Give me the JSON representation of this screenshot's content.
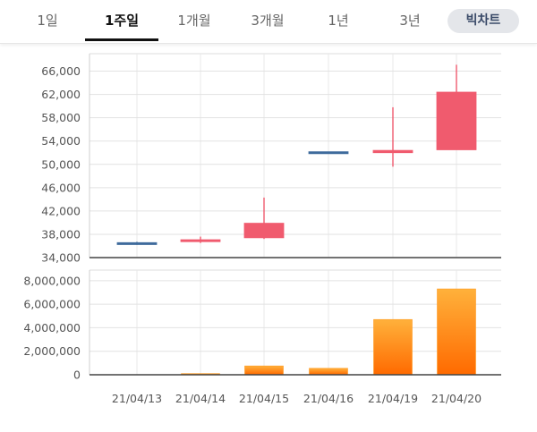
{
  "tabs": [
    {
      "label": "1일"
    },
    {
      "label": "1주일"
    },
    {
      "label": "1개월"
    },
    {
      "label": "3개월"
    },
    {
      "label": "1년"
    },
    {
      "label": "3년"
    }
  ],
  "active_tab": 1,
  "bitchart_label": "빅차트",
  "colors": {
    "up": "#f05b6e",
    "down": "#3f6b9c",
    "volume_top": "#ffb13b",
    "volume_bottom": "#ff6a00"
  },
  "chart_data": [
    {
      "type": "candlestick",
      "title": "",
      "categories": [
        "21/04/13",
        "21/04/14",
        "21/04/15",
        "21/04/16",
        "21/04/19",
        "21/04/20"
      ],
      "open": [
        36400,
        36900,
        37400,
        52000,
        52000,
        52500
      ],
      "high": [
        36700,
        37600,
        44300,
        52000,
        59800,
        67100
      ],
      "low": [
        36200,
        36500,
        37200,
        52000,
        49600,
        52500
      ],
      "close": [
        36400,
        36900,
        39900,
        52000,
        52400,
        62400
      ],
      "direction": [
        "down",
        "up",
        "up",
        "down",
        "up",
        "up"
      ],
      "y_ticks": [
        34000,
        38000,
        42000,
        46000,
        50000,
        54000,
        58000,
        62000,
        66000
      ],
      "y_tick_labels": [
        "34,000",
        "38,000",
        "42,000",
        "46,000",
        "50,000",
        "54,000",
        "58,000",
        "62,000",
        "66,000"
      ],
      "ylim": [
        34000,
        69000
      ],
      "grid": true
    },
    {
      "type": "bar",
      "title": "",
      "categories": [
        "21/04/13",
        "21/04/14",
        "21/04/15",
        "21/04/16",
        "21/04/19",
        "21/04/20"
      ],
      "values": [
        0,
        100000,
        750000,
        550000,
        4700000,
        7300000
      ],
      "y_ticks": [
        0,
        2000000,
        4000000,
        6000000,
        8000000
      ],
      "y_tick_labels": [
        "0",
        "2,000,000",
        "4,000,000",
        "6,000,000",
        "8,000,000"
      ],
      "ylim": [
        0,
        8900000
      ],
      "grid": true
    }
  ]
}
